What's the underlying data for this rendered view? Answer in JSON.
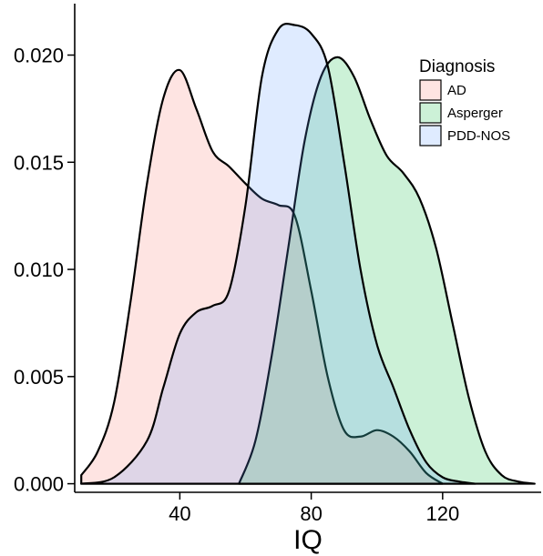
{
  "chart_data": {
    "type": "area",
    "subtype": "density",
    "title": "",
    "xlabel": "IQ",
    "ylabel": "",
    "xlim": [
      8,
      150
    ],
    "ylim": [
      -0.0004,
      0.0224
    ],
    "x_ticks": [
      40,
      80,
      120
    ],
    "x_tick_labels": [
      "40",
      "80",
      "120"
    ],
    "y_ticks": [
      0.0,
      0.005,
      0.01,
      0.015,
      0.02
    ],
    "y_tick_labels": [
      "0.000",
      "0.005",
      "0.010",
      "0.015",
      "0.020"
    ],
    "grid": false,
    "legend": {
      "title": "Diagnosis",
      "position": "top-right"
    },
    "series": [
      {
        "name": "AD",
        "color": "#F8766D",
        "fill_alpha": 0.2,
        "x": [
          10,
          15,
          20,
          25,
          30,
          35,
          40,
          45,
          50,
          55,
          60,
          65,
          70,
          75,
          80,
          85,
          90,
          95,
          100,
          105,
          110,
          115,
          120
        ],
        "y": [
          0.0004,
          0.0015,
          0.0038,
          0.0085,
          0.014,
          0.018,
          0.0193,
          0.0175,
          0.0155,
          0.0148,
          0.014,
          0.0133,
          0.013,
          0.0125,
          0.009,
          0.005,
          0.0025,
          0.0022,
          0.0025,
          0.0022,
          0.0015,
          0.0005,
          0.0
        ]
      },
      {
        "name": "Asperger",
        "color": "#00BA38",
        "fill_alpha": 0.2,
        "x": [
          58,
          63,
          68,
          73,
          78,
          83,
          88,
          93,
          98,
          103,
          108,
          113,
          118,
          123,
          128,
          133,
          138,
          143,
          148
        ],
        "y": [
          0.0,
          0.002,
          0.006,
          0.011,
          0.016,
          0.019,
          0.0199,
          0.019,
          0.017,
          0.0153,
          0.0145,
          0.0133,
          0.011,
          0.0075,
          0.004,
          0.0015,
          0.0004,
          0.0001,
          0.0
        ]
      },
      {
        "name": "PDD-NOS",
        "color": "#619CFF",
        "fill_alpha": 0.2,
        "x": [
          10,
          20,
          30,
          35,
          40,
          45,
          50,
          55,
          60,
          65,
          70,
          75,
          80,
          85,
          90,
          95,
          100,
          105,
          110,
          115,
          120,
          125,
          130
        ],
        "y": [
          0.0,
          0.0003,
          0.002,
          0.0045,
          0.007,
          0.008,
          0.0083,
          0.009,
          0.013,
          0.019,
          0.0212,
          0.0214,
          0.021,
          0.0195,
          0.015,
          0.01,
          0.0065,
          0.0045,
          0.0025,
          0.001,
          0.0003,
          0.0001,
          0.0
        ]
      }
    ]
  }
}
